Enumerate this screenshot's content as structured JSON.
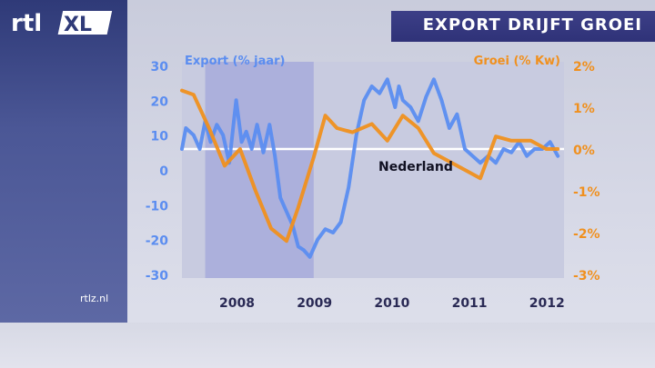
{
  "branding": {
    "logo_text": "rtl XL",
    "site": "rtlz.nl"
  },
  "title": "EXPORT DRIJFT GROEI",
  "colors": {
    "export": "#5b8df0",
    "growth": "#f0901e",
    "panel": "#3c4a8c",
    "title_bar": "#2f3278"
  },
  "chart_data": {
    "type": "line",
    "annotation": "Nederland",
    "x_ticks": [
      2008,
      2009,
      2010,
      2011,
      2012
    ],
    "shaded_region": [
      2007.65,
      2009.05
    ],
    "series": [
      {
        "name": "Export (% jaar)",
        "axis": "left",
        "ylim": [
          -30,
          30
        ],
        "y_ticks": [
          30,
          20,
          10,
          0,
          -10,
          -20,
          -30
        ],
        "x": [
          2007.35,
          2007.4,
          2007.5,
          2007.58,
          2007.65,
          2007.72,
          2007.8,
          2007.88,
          2007.96,
          2008.05,
          2008.12,
          2008.18,
          2008.25,
          2008.32,
          2008.4,
          2008.48,
          2008.55,
          2008.62,
          2008.7,
          2008.78,
          2008.85,
          2008.92,
          2009.0,
          2009.1,
          2009.2,
          2009.3,
          2009.4,
          2009.5,
          2009.6,
          2009.7,
          2009.8,
          2009.9,
          2010.0,
          2010.1,
          2010.15,
          2010.2,
          2010.3,
          2010.4,
          2010.5,
          2010.6,
          2010.7,
          2010.8,
          2010.9,
          2011.0,
          2011.1,
          2011.2,
          2011.3,
          2011.4,
          2011.5,
          2011.6,
          2011.7,
          2011.8,
          2011.9,
          2012.0,
          2012.1,
          2012.2
        ],
        "values": [
          6,
          12,
          10,
          6,
          14,
          8,
          13,
          10,
          2,
          20,
          8,
          11,
          6,
          13,
          5,
          13,
          4,
          -8,
          -12,
          -16,
          -22,
          -23,
          -25,
          -20,
          -17,
          -18,
          -15,
          -5,
          10,
          20,
          24,
          22,
          26,
          18,
          24,
          20,
          18,
          14,
          21,
          26,
          20,
          12,
          16,
          6,
          4,
          2,
          4,
          2,
          6,
          5,
          8,
          4,
          6,
          6,
          8,
          4
        ]
      },
      {
        "name": "Groei (% Kw)",
        "axis": "right",
        "ylim": [
          -3,
          2
        ],
        "y_ticks": [
          "2%",
          "1%",
          "0%",
          "-1%",
          "-2%",
          "-3%"
        ],
        "x": [
          2007.35,
          2007.5,
          2007.7,
          2007.9,
          2008.1,
          2008.3,
          2008.5,
          2008.7,
          2008.85,
          2009.05,
          2009.2,
          2009.35,
          2009.55,
          2009.8,
          2010.0,
          2010.2,
          2010.4,
          2010.6,
          2010.8,
          2011.0,
          2011.2,
          2011.4,
          2011.6,
          2011.85,
          2012.05,
          2012.2
        ],
        "values": [
          1.4,
          1.3,
          0.5,
          -0.4,
          0.0,
          -1.0,
          -1.9,
          -2.2,
          -1.4,
          -0.2,
          0.8,
          0.5,
          0.4,
          0.6,
          0.2,
          0.8,
          0.5,
          -0.1,
          -0.3,
          -0.5,
          -0.7,
          0.3,
          0.2,
          0.2,
          0.0,
          0.0
        ]
      }
    ]
  }
}
